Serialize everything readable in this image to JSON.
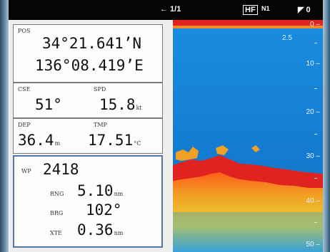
{
  "header": {
    "range_label": "← 1/1",
    "mode_label": "HF",
    "mode_sub": "N1",
    "gain_label": "◤ 0"
  },
  "position": {
    "label": "POS",
    "lat": "34°21.641’N",
    "lon": "136°08.419’E"
  },
  "course": {
    "label": "CSE",
    "value": "51°"
  },
  "speed": {
    "label": "SPD",
    "value": "15.8",
    "unit": "kt"
  },
  "depth": {
    "label": "DEP",
    "value": "36.4",
    "unit": "m"
  },
  "temperature": {
    "label": "TMP",
    "value": "17.51",
    "unit": "°C"
  },
  "waypoint": {
    "label": "WP",
    "id": "2418",
    "range_label": "RNG",
    "range_value": "5.10",
    "range_unit": "nm",
    "bearing_label": "BRG",
    "bearing_value": "102°",
    "xte_label": "XTE",
    "xte_value": "0.36",
    "xte_unit": "nm"
  },
  "sonar": {
    "range_mark": "2.5",
    "depth_scale": [
      "0",
      "10",
      "20",
      "30",
      "40",
      "50"
    ],
    "colors": {
      "water": "#1688d6",
      "bottom": "#e0231f",
      "sub_bottom": "#f2a023"
    }
  }
}
